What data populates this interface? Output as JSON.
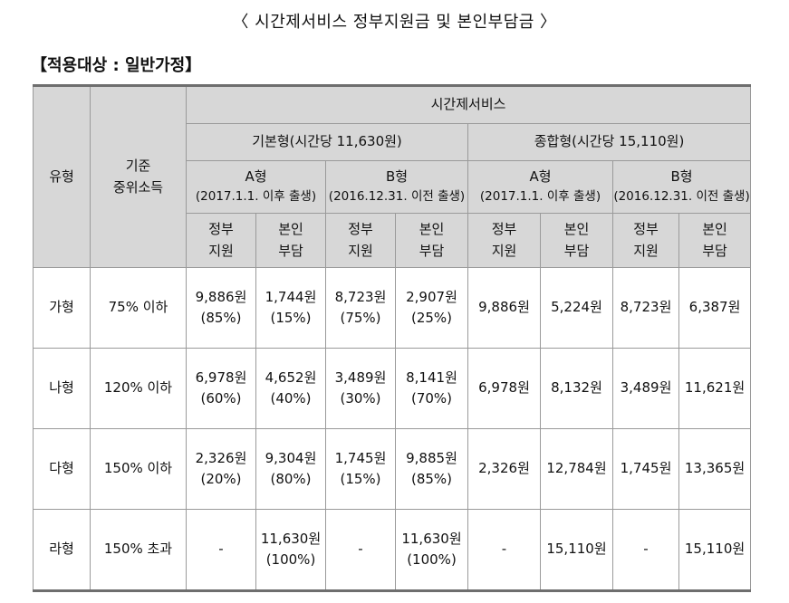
{
  "title": "〈 시간제서비스 정부지원금 및 본인부담금 〉",
  "section": "【적용대상 : 일반가정】",
  "header": {
    "type_label": "유형",
    "income_label_1": "기준",
    "income_label_2": "중위소득",
    "service": "시간제서비스",
    "basic": "기본형(시간당 11,630원)",
    "combined": "종합형(시간당 15,110원)",
    "group_a": "A형",
    "group_a_note": "(2017.1.1. 이후 출생)",
    "group_b": "B형",
    "group_b_note": "(2016.12.31. 이전 출생)",
    "gov_1": "정부",
    "gov_2": "지원",
    "self_1": "본인",
    "self_2": "부담"
  },
  "rows": [
    {
      "type": "가형",
      "income": "75% 이하",
      "basic_a_gov": "9,886원",
      "basic_a_gov_pct": "(85%)",
      "basic_a_self": "1,744원",
      "basic_a_self_pct": "(15%)",
      "basic_b_gov": "8,723원",
      "basic_b_gov_pct": "(75%)",
      "basic_b_self": "2,907원",
      "basic_b_self_pct": "(25%)",
      "comb_a_gov": "9,886원",
      "comb_a_self": "5,224원",
      "comb_b_gov": "8,723원",
      "comb_b_self": "6,387원"
    },
    {
      "type": "나형",
      "income": "120% 이하",
      "basic_a_gov": "6,978원",
      "basic_a_gov_pct": "(60%)",
      "basic_a_self": "4,652원",
      "basic_a_self_pct": "(40%)",
      "basic_b_gov": "3,489원",
      "basic_b_gov_pct": "(30%)",
      "basic_b_self": "8,141원",
      "basic_b_self_pct": "(70%)",
      "comb_a_gov": "6,978원",
      "comb_a_self": "8,132원",
      "comb_b_gov": "3,489원",
      "comb_b_self": "11,621원"
    },
    {
      "type": "다형",
      "income": "150% 이하",
      "basic_a_gov": "2,326원",
      "basic_a_gov_pct": "(20%)",
      "basic_a_self": "9,304원",
      "basic_a_self_pct": "(80%)",
      "basic_b_gov": "1,745원",
      "basic_b_gov_pct": "(15%)",
      "basic_b_self": "9,885원",
      "basic_b_self_pct": "(85%)",
      "comb_a_gov": "2,326원",
      "comb_a_self": "12,784원",
      "comb_b_gov": "1,745원",
      "comb_b_self": "13,365원"
    },
    {
      "type": "라형",
      "income": "150% 초과",
      "basic_a_gov": "-",
      "basic_a_gov_pct": "",
      "basic_a_self": "11,630원",
      "basic_a_self_pct": "(100%)",
      "basic_b_gov": "-",
      "basic_b_gov_pct": "",
      "basic_b_self": "11,630원",
      "basic_b_self_pct": "(100%)",
      "comb_a_gov": "-",
      "comb_a_self": "15,110원",
      "comb_b_gov": "-",
      "comb_b_self": "15,110원"
    }
  ]
}
